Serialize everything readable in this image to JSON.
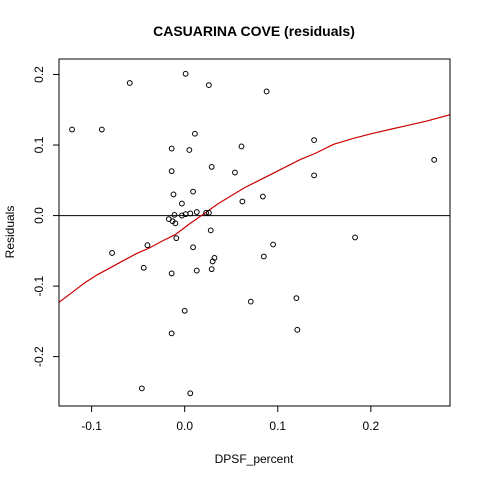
{
  "chart_data": {
    "type": "scatter",
    "title": "CASUARINA COVE (residuals)",
    "xlabel": "DPSF_percent",
    "ylabel": "Residuals",
    "xlim": [
      -0.135,
      0.285
    ],
    "ylim": [
      -0.27,
      0.222
    ],
    "x_ticks": [
      -0.1,
      0.0,
      0.1,
      0.2
    ],
    "x_tick_labels": [
      "-0.1",
      "0.0",
      "0.1",
      "0.2"
    ],
    "y_ticks": [
      -0.2,
      -0.1,
      0.0,
      0.1,
      0.2
    ],
    "y_tick_labels": [
      "-0.2",
      "-0.1",
      "0.0",
      "0.1",
      "0.2"
    ],
    "reference_line_y": 0,
    "grid": false,
    "colors": {
      "points": "#000000",
      "smooth": "#cc0000",
      "reference": "#000000"
    },
    "points": [
      {
        "x": -0.121,
        "y": 0.122
      },
      {
        "x": -0.089,
        "y": 0.122
      },
      {
        "x": -0.059,
        "y": 0.188
      },
      {
        "x": 0.001,
        "y": 0.201
      },
      {
        "x": 0.026,
        "y": 0.185
      },
      {
        "x": 0.088,
        "y": 0.176
      },
      {
        "x": 0.011,
        "y": 0.116
      },
      {
        "x": 0.139,
        "y": 0.107
      },
      {
        "x": 0.061,
        "y": 0.098
      },
      {
        "x": -0.014,
        "y": 0.095
      },
      {
        "x": 0.005,
        "y": 0.093
      },
      {
        "x": 0.029,
        "y": 0.069
      },
      {
        "x": -0.014,
        "y": 0.063
      },
      {
        "x": 0.054,
        "y": 0.061
      },
      {
        "x": 0.139,
        "y": 0.057
      },
      {
        "x": 0.268,
        "y": 0.079
      },
      {
        "x": 0.009,
        "y": 0.034
      },
      {
        "x": -0.012,
        "y": 0.03
      },
      {
        "x": 0.084,
        "y": 0.027
      },
      {
        "x": 0.062,
        "y": 0.02
      },
      {
        "x": -0.003,
        "y": 0.017
      },
      {
        "x": 0.013,
        "y": 0.005
      },
      {
        "x": 0.023,
        "y": 0.004
      },
      {
        "x": 0.026,
        "y": 0.004
      },
      {
        "x": -0.011,
        "y": 0.001
      },
      {
        "x": -0.003,
        "y": 0.0
      },
      {
        "x": 0.001,
        "y": 0.002
      },
      {
        "x": 0.006,
        "y": 0.003
      },
      {
        "x": -0.017,
        "y": -0.005
      },
      {
        "x": -0.013,
        "y": -0.008
      },
      {
        "x": -0.01,
        "y": -0.011
      },
      {
        "x": 0.028,
        "y": -0.021
      },
      {
        "x": -0.009,
        "y": -0.032
      },
      {
        "x": 0.183,
        "y": -0.031
      },
      {
        "x": -0.04,
        "y": -0.042
      },
      {
        "x": 0.095,
        "y": -0.041
      },
      {
        "x": 0.009,
        "y": -0.045
      },
      {
        "x": -0.078,
        "y": -0.053
      },
      {
        "x": 0.085,
        "y": -0.058
      },
      {
        "x": 0.032,
        "y": -0.06
      },
      {
        "x": 0.03,
        "y": -0.065
      },
      {
        "x": -0.044,
        "y": -0.074
      },
      {
        "x": 0.029,
        "y": -0.076
      },
      {
        "x": 0.013,
        "y": -0.078
      },
      {
        "x": -0.014,
        "y": -0.082
      },
      {
        "x": 0.12,
        "y": -0.117
      },
      {
        "x": 0.071,
        "y": -0.122
      },
      {
        "x": 0.0,
        "y": -0.135
      },
      {
        "x": 0.121,
        "y": -0.162
      },
      {
        "x": -0.014,
        "y": -0.167
      },
      {
        "x": -0.046,
        "y": -0.245
      },
      {
        "x": 0.006,
        "y": -0.252
      }
    ],
    "smooth": {
      "x": [
        -0.135,
        -0.122,
        -0.108,
        -0.094,
        -0.08,
        -0.066,
        -0.052,
        -0.038,
        -0.024,
        -0.01,
        0.005,
        0.02,
        0.035,
        0.05,
        0.065,
        0.08,
        0.095,
        0.11,
        0.125,
        0.14,
        0.16,
        0.18,
        0.2,
        0.22,
        0.24,
        0.26,
        0.285
      ],
      "y": [
        -0.123,
        -0.11,
        -0.096,
        -0.084,
        -0.074,
        -0.064,
        -0.054,
        -0.046,
        -0.036,
        -0.027,
        -0.012,
        0.002,
        0.016,
        0.028,
        0.04,
        0.05,
        0.06,
        0.07,
        0.08,
        0.088,
        0.101,
        0.109,
        0.116,
        0.122,
        0.128,
        0.134,
        0.143
      ]
    }
  }
}
